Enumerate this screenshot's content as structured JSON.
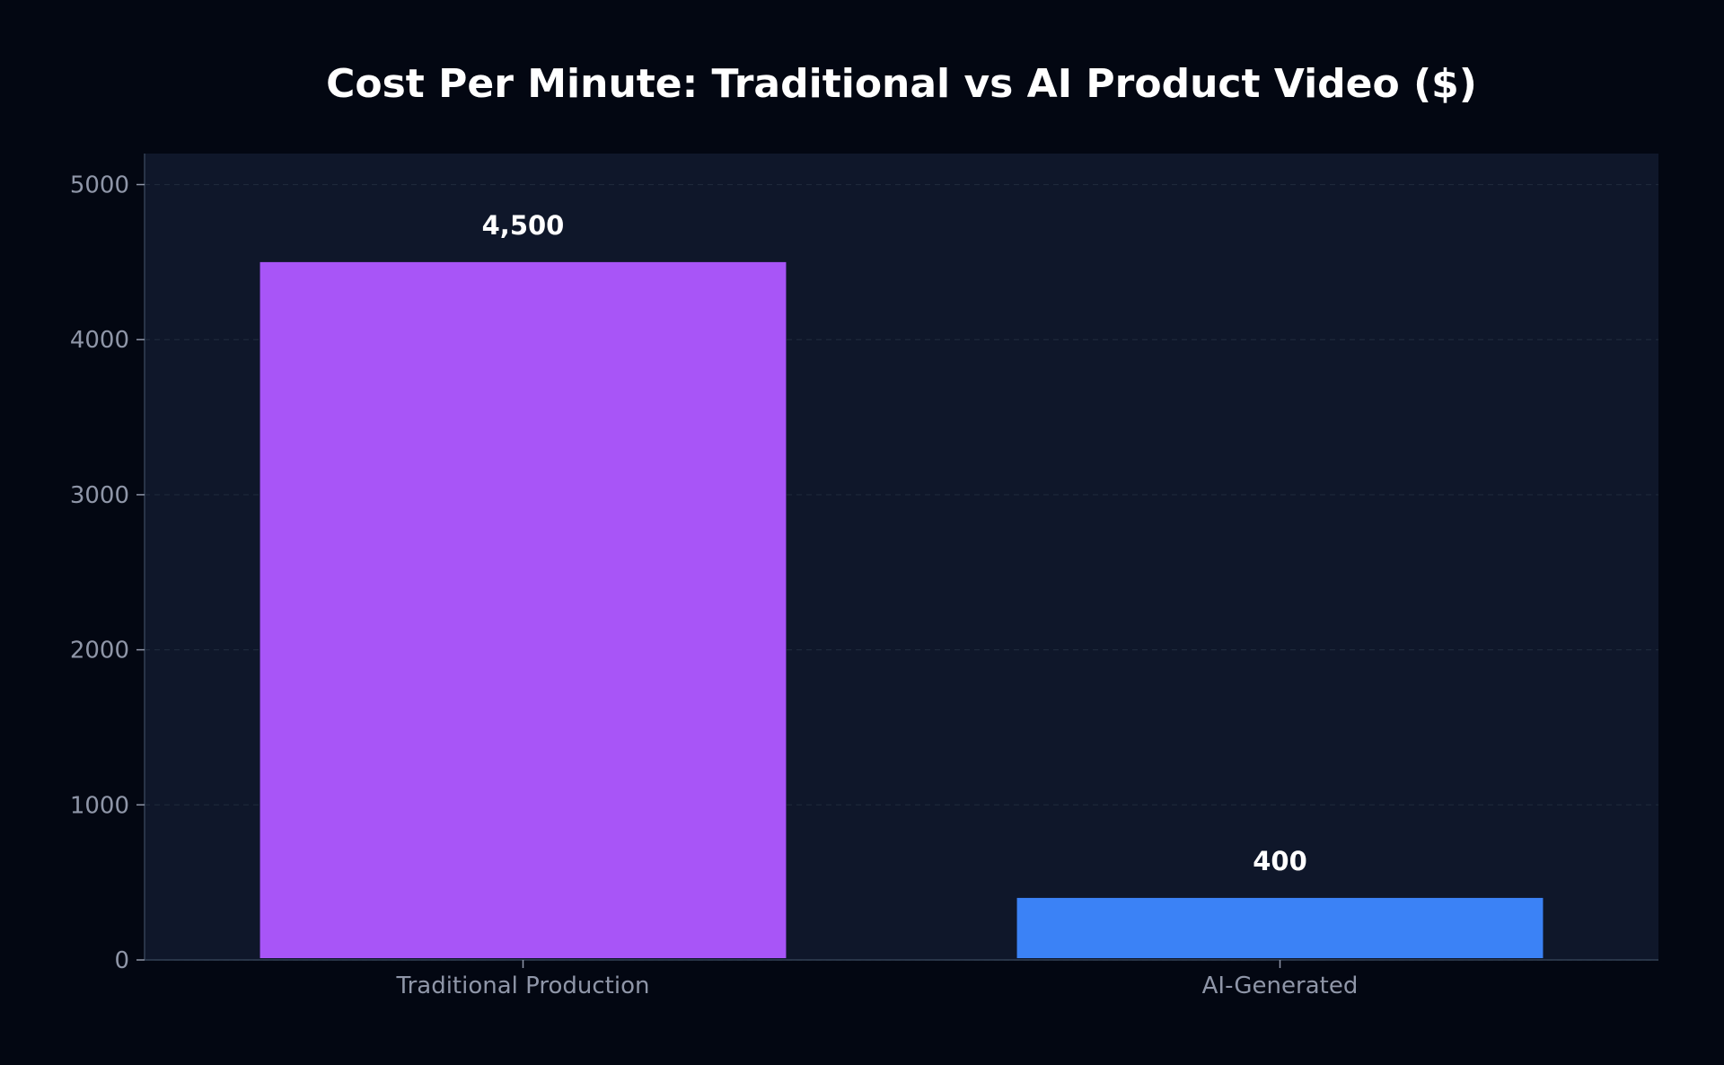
{
  "chart_data": {
    "type": "bar",
    "title": "Cost Per Minute: Traditional vs AI Product Video ($)",
    "xlabel": "",
    "ylabel": "",
    "categories": [
      "Traditional Production",
      "AI-Generated"
    ],
    "values": [
      4500,
      400
    ],
    "value_labels": [
      "4,500",
      "400"
    ],
    "ylim": [
      0,
      5200
    ],
    "yticks": [
      0,
      1000,
      2000,
      3000,
      4000,
      5000
    ],
    "grid": true,
    "legend": "none",
    "bar_colors": [
      "#a855f7",
      "#3b82f6"
    ]
  },
  "colors": {
    "page_background": "#030712",
    "plot_background": "#0f172a",
    "grid": "#1e293b",
    "axis": "#334155",
    "tick_text": "#8f96a8",
    "title_text": "#ffffff"
  }
}
